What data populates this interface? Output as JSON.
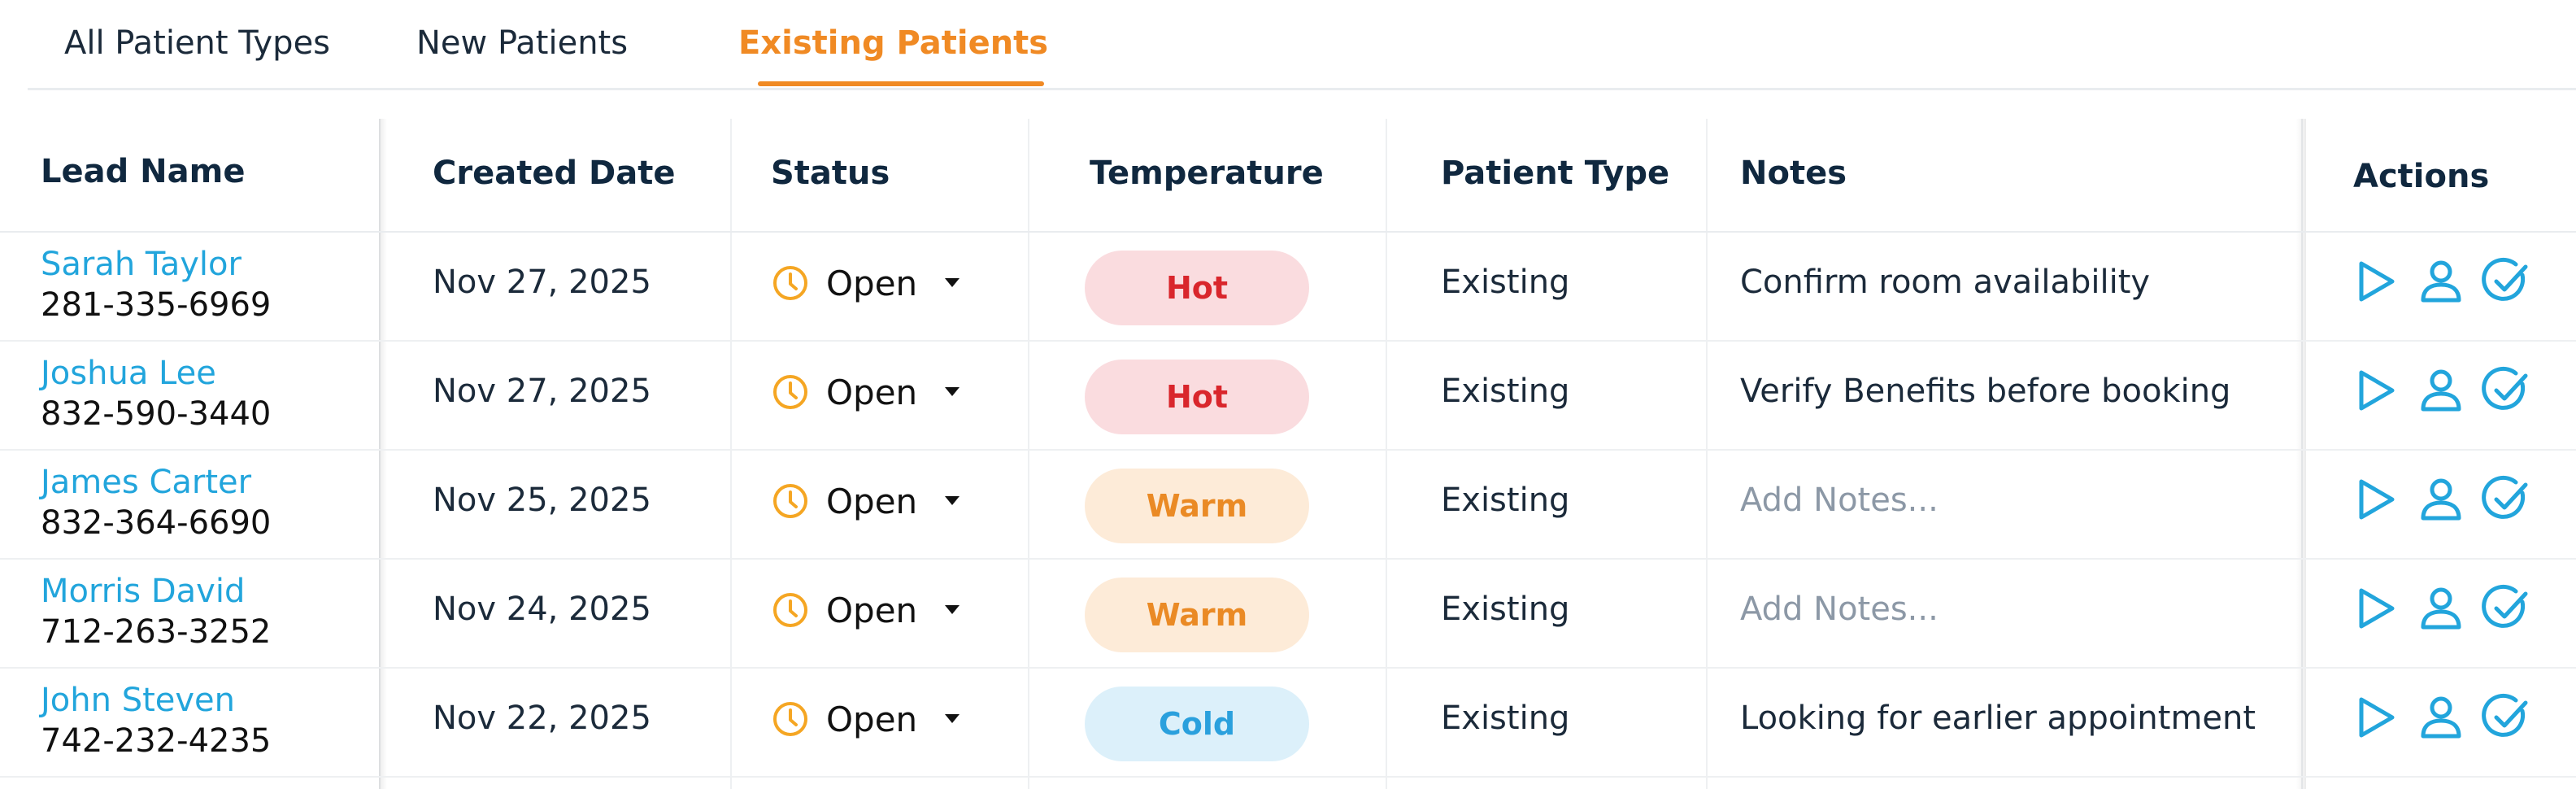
{
  "tabs": [
    {
      "label": "All Patient Types",
      "active": false
    },
    {
      "label": "New Patients",
      "active": false
    },
    {
      "label": "Existing Patients",
      "active": true
    }
  ],
  "table": {
    "headers": {
      "lead_name": "Lead Name",
      "created_date": "Created Date",
      "status": "Status",
      "temperature": "Temperature",
      "patient_type": "Patient Type",
      "notes": "Notes",
      "actions": "Actions"
    },
    "rows": [
      {
        "name": "Sarah Taylor",
        "phone": "281-335-6969",
        "date": "Nov 27, 2025",
        "status": "Open",
        "temperature": "Hot",
        "patient_type": "Existing",
        "notes": "Confirm room availability",
        "notes_placeholder": false
      },
      {
        "name": "Joshua Lee",
        "phone": "832-590-3440",
        "date": "Nov 27, 2025",
        "status": "Open",
        "temperature": "Hot",
        "patient_type": "Existing",
        "notes": "Verify Benefits before booking",
        "notes_placeholder": false
      },
      {
        "name": "James Carter",
        "phone": "832-364-6690",
        "date": "Nov 25, 2025",
        "status": "Open",
        "temperature": "Warm",
        "patient_type": "Existing",
        "notes": "Add Notes...",
        "notes_placeholder": true
      },
      {
        "name": "Morris David",
        "phone": "712-263-3252",
        "date": "Nov 24, 2025",
        "status": "Open",
        "temperature": "Warm",
        "patient_type": "Existing",
        "notes": "Add Notes...",
        "notes_placeholder": true
      },
      {
        "name": "John Steven",
        "phone": "742-232-4235",
        "date": "Nov 22, 2025",
        "status": "Open",
        "temperature": "Cold",
        "patient_type": "Existing",
        "notes": "Looking for earlier appointment",
        "notes_placeholder": false
      }
    ]
  },
  "icons": {
    "status": "clock-icon",
    "status_caret": "caret-down-icon",
    "actions": [
      "play-icon",
      "user-icon",
      "check-circle-icon"
    ]
  },
  "colors": {
    "accent": "#f08a24",
    "link": "#22a5dc",
    "clock": "#f5a623",
    "hot_bg": "#fadcdf",
    "hot_fg": "#d9262c",
    "warm_bg": "#fdebd8",
    "warm_fg": "#ea8a25",
    "cold_bg": "#dcf0fa",
    "cold_fg": "#2aa0dd"
  }
}
